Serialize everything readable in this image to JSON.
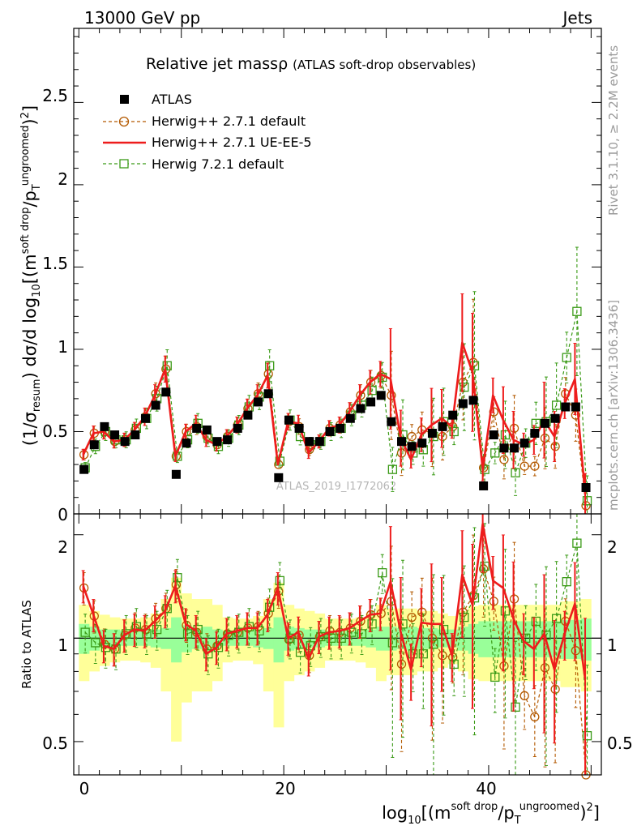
{
  "header": {
    "left": "13000 GeV pp",
    "right": "Jets"
  },
  "side_text": {
    "rivet": "Rivet 3.1.10, ≥ 2.2M events",
    "mcplots": "mcplots.cern.ch [arXiv:1306.3436]"
  },
  "watermark": "ATLAS_2019_I1772062",
  "legend": {
    "title": "Relative jet massρ",
    "subtitle": "(ATLAS soft-drop observables)",
    "entries": [
      "ATLAS",
      "Herwig++ 2.7.1 default",
      "Herwig++ 2.7.1 UE-EE-5",
      "Herwig 7.2.1 default"
    ]
  },
  "labels": {
    "ylabel_main": "(1/σ_resum) dσ/d log10[(m^soft drop/pT^ungroomed)^2]",
    "ylabel_ratio": "Ratio to ATLAS",
    "xlabel": "log10[(m^soft drop/pT^ungroomed)^2]"
  },
  "ticks": {
    "main_y": [
      "0",
      "0.5",
      "1",
      "1.5",
      "2",
      "2.5"
    ],
    "ratio_y": [
      "0.5",
      "1",
      "2"
    ],
    "x": [
      "0",
      "20",
      "40"
    ]
  },
  "chart_data": {
    "type": "scatter",
    "x": [
      0.5,
      1.5,
      2.5,
      3.5,
      4.5,
      5.5,
      6.5,
      7.5,
      8.5,
      9.5,
      10.5,
      11.5,
      12.5,
      13.5,
      14.5,
      15.5,
      16.5,
      17.5,
      18.5,
      19.5,
      20.5,
      21.5,
      22.5,
      23.5,
      24.5,
      25.5,
      26.5,
      27.5,
      28.5,
      29.5,
      30.5,
      31.5,
      32.5,
      33.5,
      34.5,
      35.5,
      36.5,
      37.5,
      38.5,
      39.5,
      40.5,
      41.5,
      42.5,
      43.5,
      44.5,
      45.5,
      46.5,
      47.5,
      48.5,
      49.5
    ],
    "xlim": [
      -0.5,
      51
    ],
    "main": {
      "ylim": [
        0,
        2.95
      ],
      "ytick_values": [
        0,
        0.5,
        1,
        1.5,
        2,
        2.5
      ]
    },
    "ratio": {
      "ylim": [
        0.4,
        2.3
      ],
      "log": true,
      "ytick_values": [
        0.5,
        1,
        2
      ]
    },
    "xtick_values": [
      0,
      20,
      40
    ],
    "series": [
      {
        "name": "ATLAS",
        "color": "#000000",
        "values": [
          0.27,
          0.42,
          0.53,
          0.48,
          0.44,
          0.48,
          0.58,
          0.66,
          0.74,
          0.24,
          0.43,
          0.52,
          0.51,
          0.44,
          0.45,
          0.52,
          0.6,
          0.68,
          0.73,
          0.22,
          0.57,
          0.52,
          0.44,
          0.44,
          0.5,
          0.52,
          0.58,
          0.64,
          0.68,
          0.72,
          0.56,
          0.44,
          0.41,
          0.43,
          0.49,
          0.53,
          0.6,
          0.67,
          0.69,
          0.17,
          0.48,
          0.4,
          0.4,
          0.43,
          0.49,
          0.55,
          0.58,
          0.65,
          0.65,
          0.16
        ]
      },
      {
        "name": "Herwig++ 2.7.1 default",
        "color": "#b35900",
        "values": [
          0.36,
          0.49,
          0.5,
          0.44,
          0.45,
          0.51,
          0.59,
          0.73,
          0.88,
          0.35,
          0.5,
          0.53,
          0.47,
          0.42,
          0.47,
          0.54,
          0.64,
          0.73,
          0.85,
          0.3,
          0.56,
          0.53,
          0.39,
          0.44,
          0.52,
          0.54,
          0.62,
          0.72,
          0.8,
          0.84,
          0.72,
          0.37,
          0.47,
          0.51,
          0.49,
          0.47,
          0.53,
          0.8,
          0.92,
          0.28,
          0.62,
          0.33,
          0.52,
          0.29,
          0.29,
          0.46,
          0.41,
          0.73,
          0.6,
          0.05
        ]
      },
      {
        "name": "Herwig++ 2.7.1 UE-EE-5",
        "color": "#ee1c1c",
        "values": [
          0.36,
          0.49,
          0.5,
          0.44,
          0.45,
          0.51,
          0.59,
          0.72,
          0.88,
          0.35,
          0.5,
          0.55,
          0.45,
          0.42,
          0.47,
          0.54,
          0.64,
          0.72,
          0.84,
          0.3,
          0.56,
          0.55,
          0.37,
          0.44,
          0.52,
          0.54,
          0.62,
          0.72,
          0.8,
          0.85,
          0.82,
          0.46,
          0.33,
          0.48,
          0.54,
          0.58,
          0.53,
          1.04,
          0.86,
          0.27,
          0.72,
          0.57,
          0.45,
          0.42,
          0.45,
          0.57,
          0.47,
          0.67,
          0.82,
          0.12
        ]
      },
      {
        "name": "Herwig 7.2.1 default",
        "color": "#3a9a16",
        "values": [
          0.28,
          0.41,
          0.5,
          0.45,
          0.45,
          0.52,
          0.58,
          0.7,
          0.9,
          0.35,
          0.45,
          0.55,
          0.46,
          0.41,
          0.46,
          0.54,
          0.65,
          0.71,
          0.9,
          0.32,
          0.57,
          0.47,
          0.42,
          0.44,
          0.5,
          0.52,
          0.6,
          0.66,
          0.75,
          0.83,
          0.27,
          0.48,
          0.37,
          0.39,
          0.47,
          0.56,
          0.5,
          0.77,
          0.9,
          0.27,
          0.37,
          0.48,
          0.25,
          0.43,
          0.55,
          0.56,
          0.66,
          0.95,
          1.23,
          0.08
        ]
      }
    ],
    "ratios": {
      "Herwig++ 2.7.1 default": [
        1.4,
        1.16,
        0.96,
        0.93,
        1.02,
        1.07,
        1.06,
        1.14,
        1.22,
        1.43,
        1.09,
        1.04,
        0.93,
        0.95,
        1.03,
        1.04,
        1.07,
        1.08,
        1.18,
        1.37,
        0.99,
        1.02,
        0.89,
        1.01,
        1.05,
        1.04,
        1.07,
        1.12,
        1.17,
        1.18,
        1.28,
        0.84,
        1.15,
        1.19,
        1.0,
        0.89,
        0.88,
        1.19,
        1.33,
        1.59,
        1.28,
        0.83,
        1.3,
        0.68,
        0.59,
        0.82,
        0.71,
        1.12,
        0.92,
        0.33
      ],
      "Herwig++ 2.7.1 UE-EE-5": [
        1.42,
        1.17,
        0.95,
        0.93,
        1.02,
        1.06,
        1.05,
        1.12,
        1.2,
        1.42,
        1.1,
        1.05,
        0.9,
        0.94,
        1.03,
        1.05,
        1.07,
        1.07,
        1.17,
        1.4,
        1.0,
        1.04,
        0.87,
        1.01,
        1.04,
        1.05,
        1.07,
        1.12,
        1.17,
        1.18,
        1.46,
        1.04,
        0.81,
        1.11,
        1.1,
        1.1,
        0.89,
        1.53,
        1.25,
        2.15,
        1.47,
        1.4,
        1.14,
        0.98,
        0.93,
        1.03,
        0.81,
        1.03,
        1.26,
        0.76
      ],
      "Herwig 7.2.1 default": [
        1.04,
        0.97,
        0.94,
        0.93,
        1.03,
        1.08,
        1.03,
        1.06,
        1.22,
        1.5,
        1.03,
        1.06,
        0.9,
        0.94,
        1.02,
        1.04,
        1.08,
        1.05,
        1.23,
        1.47,
        1.0,
        0.91,
        0.95,
        1.01,
        1.0,
        1.0,
        1.04,
        1.03,
        1.1,
        1.55,
        0.97,
        1.1,
        0.9,
        0.9,
        0.96,
        1.06,
        0.84,
        1.15,
        1.31,
        1.62,
        0.77,
        1.2,
        0.63,
        1.0,
        1.12,
        1.02,
        1.14,
        1.46,
        1.89,
        0.52
      ]
    },
    "uncertainty_bands": {
      "inner_half_width": [
        0.1,
        0.08,
        0.06,
        0.06,
        0.05,
        0.05,
        0.05,
        0.06,
        0.07,
        0.15,
        0.09,
        0.07,
        0.08,
        0.06,
        0.05,
        0.05,
        0.05,
        0.06,
        0.07,
        0.15,
        0.08,
        0.07,
        0.06,
        0.06,
        0.05,
        0.05,
        0.05,
        0.05,
        0.06,
        0.08,
        0.08,
        0.07,
        0.08,
        0.07,
        0.07,
        0.06,
        0.06,
        0.08,
        0.1,
        0.12,
        0.12,
        0.12,
        0.12,
        0.12,
        0.12,
        0.12,
        0.12,
        0.13,
        0.13,
        0.14
      ],
      "outer_half_width": [
        0.25,
        0.2,
        0.17,
        0.15,
        0.14,
        0.14,
        0.15,
        0.18,
        0.3,
        0.5,
        0.35,
        0.3,
        0.3,
        0.25,
        0.15,
        0.14,
        0.14,
        0.16,
        0.3,
        0.45,
        0.25,
        0.22,
        0.2,
        0.18,
        0.14,
        0.14,
        0.14,
        0.15,
        0.18,
        0.25,
        0.22,
        0.22,
        0.22,
        0.2,
        0.2,
        0.18,
        0.16,
        0.2,
        0.24,
        0.25,
        0.25,
        0.25,
        0.25,
        0.25,
        0.25,
        0.25,
        0.25,
        0.28,
        0.28,
        0.3
      ]
    }
  }
}
